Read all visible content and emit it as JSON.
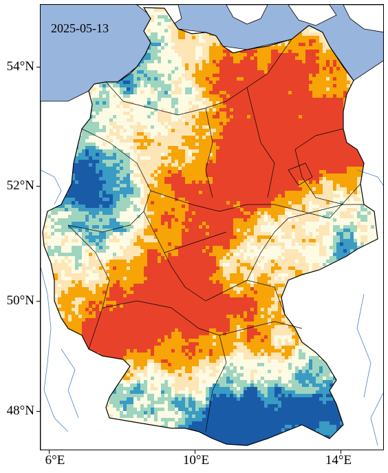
{
  "map": {
    "date": "2025-05-13",
    "lat_ticks": [
      "54°N",
      "52°N",
      "50°N",
      "48°N"
    ],
    "lon_ticks": [
      "6°E",
      "10°E",
      "14°E"
    ],
    "extent_lon": [
      5.8,
      15.25
    ],
    "extent_lat": [
      47.25,
      55.05
    ],
    "colors": {
      "sea": "#98b5de",
      "land_outside": "#ffffff",
      "borders": "#000000",
      "rivers": "#4a7fbf",
      "dry_severe": "#e8432a",
      "dry_moderate": "#f6a406",
      "dry_mild": "#fde5b6",
      "normal": "#fdfbe4",
      "wet_mild": "#9fd5bf",
      "wet_moderate": "#3a9bc4",
      "wet_severe": "#1a5ba8"
    }
  }
}
